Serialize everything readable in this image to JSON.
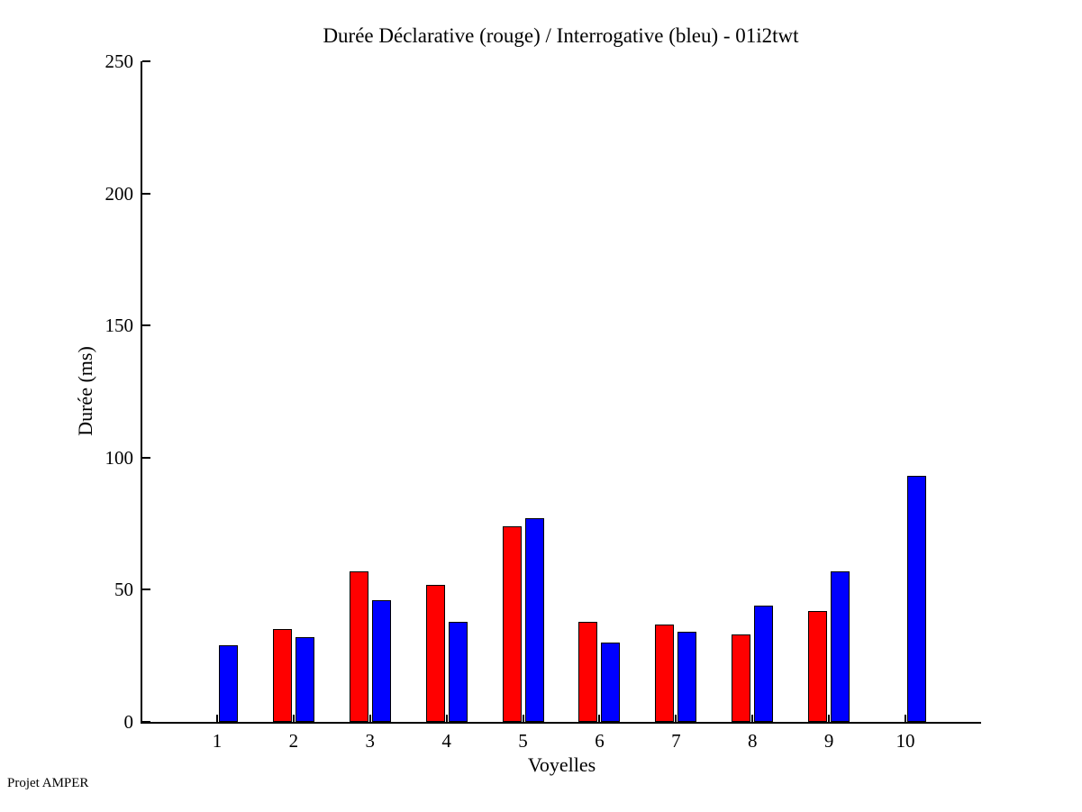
{
  "chart_data": {
    "type": "bar",
    "title": "Durée Déclarative (rouge) / Interrogative (bleu) - 01i2twt",
    "xlabel": "Voyelles",
    "ylabel": "Durée (ms)",
    "footer": "Projet AMPER",
    "categories": [
      "1",
      "2",
      "3",
      "4",
      "5",
      "6",
      "7",
      "8",
      "9",
      "10"
    ],
    "series": [
      {
        "name": "Déclarative (rouge)",
        "color": "#ff0000",
        "values": [
          0,
          35,
          57,
          52,
          74,
          38,
          37,
          33,
          42,
          0
        ]
      },
      {
        "name": "Interrogative (bleu)",
        "color": "#0000ff",
        "values": [
          29,
          32,
          46,
          38,
          77,
          30,
          34,
          44,
          57,
          93
        ]
      }
    ],
    "ylim": [
      0,
      250
    ],
    "yticks": [
      0,
      50,
      100,
      150,
      200,
      250
    ],
    "grid": false,
    "legend_position": "none",
    "axis_color": "#000000",
    "background_color": "#ffffff"
  }
}
